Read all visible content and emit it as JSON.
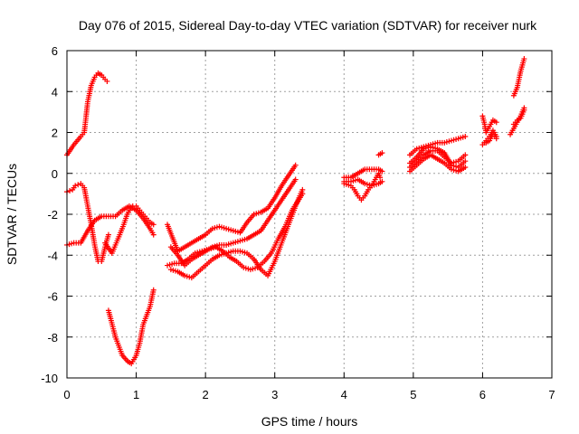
{
  "chart_data": {
    "type": "scatter",
    "title": "Day 076 of 2015, Sidereal Day-to-day VTEC variation (SDTVAR) for receiver nurk",
    "xlabel": "GPS time / hours",
    "ylabel": "SDTVAR / TECUs",
    "xlim": [
      0,
      7
    ],
    "ylim": [
      -10,
      6
    ],
    "xticks": [
      "0",
      "1",
      "2",
      "3",
      "4",
      "5",
      "6",
      "7"
    ],
    "yticks": [
      "-10",
      "-8",
      "-6",
      "-4",
      "-2",
      "0",
      "2",
      "4",
      "6"
    ],
    "grid": true,
    "marker": "plus",
    "color": "#ff0000",
    "series": [
      {
        "x": [
          0.0,
          0.1,
          0.2,
          0.25,
          0.3,
          0.35,
          0.4,
          0.45,
          0.5,
          0.55,
          0.58
        ],
        "y": [
          0.9,
          1.4,
          1.8,
          2.0,
          3.5,
          4.3,
          4.7,
          4.9,
          4.8,
          4.6,
          4.5
        ]
      },
      {
        "x": [
          0.0,
          0.08,
          0.12,
          0.2,
          0.25,
          0.3,
          0.35,
          0.4,
          0.45,
          0.5,
          0.55,
          0.6
        ],
        "y": [
          -0.9,
          -0.8,
          -0.6,
          -0.5,
          -0.7,
          -1.6,
          -2.5,
          -3.5,
          -4.3,
          -4.3,
          -3.6,
          -3.0
        ]
      },
      {
        "x": [
          0.0,
          0.1,
          0.2,
          0.3,
          0.4,
          0.5,
          0.6,
          0.7,
          0.8,
          0.9,
          1.0,
          1.1,
          1.2,
          1.25
        ],
        "y": [
          -3.5,
          -3.4,
          -3.4,
          -2.8,
          -2.3,
          -2.1,
          -2.1,
          -2.1,
          -1.8,
          -1.6,
          -1.8,
          -2.2,
          -2.7,
          -3.0
        ]
      },
      {
        "x": [
          0.55,
          0.65,
          0.75,
          0.82,
          0.87,
          0.92,
          0.95,
          1.0,
          1.05,
          1.1,
          1.15,
          1.2,
          1.25
        ],
        "y": [
          -3.4,
          -3.9,
          -3.1,
          -2.5,
          -2.0,
          -1.7,
          -1.6,
          -1.6,
          -1.8,
          -2.0,
          -2.2,
          -2.4,
          -2.5
        ]
      },
      {
        "x": [
          0.6,
          0.7,
          0.8,
          0.88,
          0.93,
          1.0,
          1.05,
          1.1,
          1.2,
          1.25
        ],
        "y": [
          -6.7,
          -8.0,
          -8.9,
          -9.2,
          -9.3,
          -8.9,
          -8.3,
          -7.4,
          -6.5,
          -5.7
        ]
      },
      {
        "x": [
          1.45,
          1.6,
          1.75,
          1.9,
          2.0,
          2.1,
          2.2,
          2.3,
          2.4,
          2.5,
          2.6,
          2.7,
          2.8,
          2.9,
          3.0,
          3.1,
          3.2,
          3.3
        ],
        "y": [
          -2.5,
          -3.8,
          -3.5,
          -3.2,
          -3.0,
          -2.7,
          -2.6,
          -2.7,
          -2.8,
          -2.9,
          -2.4,
          -2.0,
          -1.9,
          -1.7,
          -1.2,
          -0.6,
          -0.1,
          0.4
        ]
      },
      {
        "x": [
          1.5,
          1.6,
          1.7,
          1.8,
          1.9,
          2.0,
          2.1,
          2.2,
          2.3,
          2.4,
          2.5,
          2.6,
          2.7,
          2.8,
          2.9,
          3.0,
          3.1,
          3.2,
          3.3
        ],
        "y": [
          -3.6,
          -4.0,
          -4.5,
          -4.2,
          -4.0,
          -3.8,
          -3.6,
          -3.5,
          -3.5,
          -3.4,
          -3.3,
          -3.2,
          -3.0,
          -2.8,
          -2.3,
          -1.8,
          -1.3,
          -0.8,
          -0.3
        ]
      },
      {
        "x": [
          1.45,
          1.55,
          1.65,
          1.75,
          1.85,
          1.95,
          2.05,
          2.15,
          2.25,
          2.35,
          2.45,
          2.55,
          2.65,
          2.75,
          2.85,
          2.95,
          3.05,
          3.15,
          3.25,
          3.4
        ],
        "y": [
          -4.5,
          -4.4,
          -4.4,
          -4.2,
          -3.9,
          -3.8,
          -3.7,
          -3.6,
          -3.8,
          -4.1,
          -4.3,
          -4.6,
          -4.7,
          -4.6,
          -4.3,
          -3.9,
          -3.2,
          -2.6,
          -1.8,
          -1.0
        ]
      },
      {
        "x": [
          1.5,
          1.6,
          1.7,
          1.8,
          1.9,
          2.0,
          2.1,
          2.2,
          2.3,
          2.4,
          2.5,
          2.6,
          2.7,
          2.8,
          2.9,
          3.0,
          3.1,
          3.2,
          3.3,
          3.4
        ],
        "y": [
          -4.7,
          -4.8,
          -5.0,
          -5.1,
          -4.8,
          -4.5,
          -4.2,
          -4.0,
          -3.9,
          -3.8,
          -3.8,
          -3.9,
          -4.2,
          -4.7,
          -5.0,
          -4.3,
          -3.4,
          -2.5,
          -1.6,
          -0.8
        ]
      },
      {
        "x": [
          4.0,
          4.1,
          4.15,
          4.2,
          4.25,
          4.3,
          4.35,
          4.4,
          4.45,
          4.5,
          4.52
        ],
        "y": [
          -0.5,
          -0.6,
          -0.8,
          -1.1,
          -1.3,
          -1.1,
          -0.8,
          -0.6,
          -0.3,
          0.0,
          -0.2
        ]
      },
      {
        "x": [
          4.0,
          4.1,
          4.2,
          4.3,
          4.4,
          4.5,
          4.55
        ],
        "y": [
          -0.2,
          -0.2,
          0.0,
          0.2,
          0.2,
          0.2,
          0.1
        ]
      },
      {
        "x": [
          4.0,
          4.1,
          4.2,
          4.3,
          4.4,
          4.5,
          4.55
        ],
        "y": [
          -0.4,
          -0.4,
          -0.3,
          -0.5,
          -0.6,
          -0.5,
          -0.4
        ]
      },
      {
        "x": [
          4.5,
          4.55
        ],
        "y": [
          0.9,
          1.0
        ]
      },
      {
        "x": [
          4.95,
          5.05,
          5.15,
          5.25,
          5.35,
          5.45,
          5.55,
          5.65,
          5.75
        ],
        "y": [
          0.9,
          1.2,
          1.3,
          1.4,
          1.5,
          1.5,
          1.6,
          1.7,
          1.8
        ]
      },
      {
        "x": [
          4.95,
          5.05,
          5.15,
          5.25,
          5.35,
          5.45,
          5.55,
          5.65,
          5.75
        ],
        "y": [
          0.3,
          0.6,
          0.9,
          1.1,
          1.1,
          0.8,
          0.5,
          0.6,
          0.9
        ]
      },
      {
        "x": [
          4.95,
          5.05,
          5.15,
          5.25,
          5.35,
          5.45,
          5.55,
          5.65,
          5.75
        ],
        "y": [
          0.5,
          0.8,
          1.2,
          1.3,
          1.2,
          1.0,
          0.4,
          0.3,
          0.6
        ]
      },
      {
        "x": [
          4.95,
          5.05,
          5.15,
          5.25,
          5.35,
          5.45,
          5.55,
          5.65,
          5.75
        ],
        "y": [
          0.1,
          0.4,
          0.7,
          0.9,
          0.7,
          0.5,
          0.2,
          0.1,
          0.3
        ]
      },
      {
        "x": [
          6.0,
          6.03,
          6.05,
          6.1,
          6.15,
          6.2
        ],
        "y": [
          2.8,
          2.4,
          2.0,
          2.3,
          2.6,
          2.5
        ]
      },
      {
        "x": [
          6.0,
          6.05,
          6.1,
          6.15,
          6.2
        ],
        "y": [
          1.4,
          1.6,
          1.8,
          2.1,
          1.8
        ]
      },
      {
        "x": [
          6.05,
          6.1,
          6.15,
          6.2
        ],
        "y": [
          1.5,
          1.6,
          1.9,
          1.7
        ]
      },
      {
        "x": [
          6.4,
          6.45,
          6.5,
          6.55,
          6.6
        ],
        "y": [
          1.9,
          2.2,
          2.5,
          2.8,
          3.2
        ]
      },
      {
        "x": [
          6.45,
          6.5,
          6.55,
          6.6
        ],
        "y": [
          3.8,
          4.2,
          5.0,
          5.6
        ]
      },
      {
        "x": [
          6.45,
          6.5,
          6.55,
          6.6
        ],
        "y": [
          2.4,
          2.6,
          2.7,
          3.1
        ]
      }
    ]
  }
}
